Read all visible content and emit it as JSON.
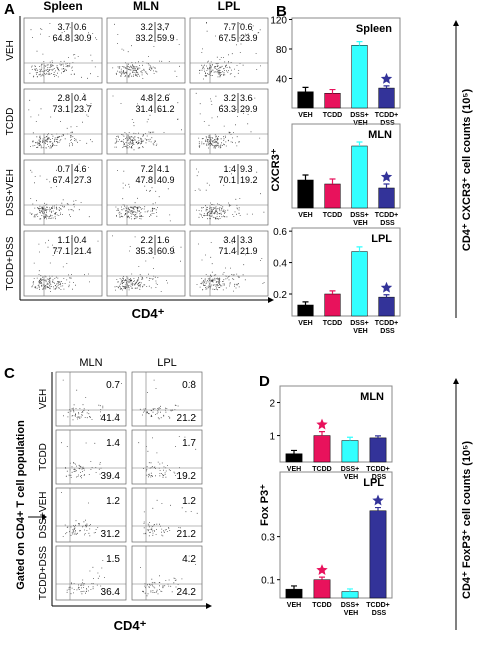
{
  "panel_labels": [
    "A",
    "B",
    "C",
    "D"
  ],
  "flow_a": {
    "columns": [
      "Spleen",
      "MLN",
      "LPL"
    ],
    "rows": [
      "VEH",
      "TCDD",
      "DSS+VEH",
      "TCDD+DSS"
    ],
    "x_label": "CD4⁺",
    "quadrants": [
      [
        [
          3.7,
          0.6,
          64.8,
          30.9
        ],
        [
          2.8,
          0.4,
          73.1,
          23.7
        ],
        [
          0.7,
          4.6,
          67.4,
          27.3
        ],
        [
          1.1,
          0.4,
          77.1,
          21.4
        ]
      ],
      [
        [
          3.2,
          3.7,
          33.2,
          59.9
        ],
        [
          4.8,
          2.6,
          31.4,
          61.2
        ],
        [
          7.2,
          4.1,
          47.8,
          40.9
        ],
        [
          2.2,
          1.6,
          35.3,
          60.9
        ]
      ],
      [
        [
          7.7,
          0.6,
          67.5,
          23.9
        ],
        [
          3.2,
          3.6,
          63.3,
          29.9
        ],
        [
          1.4,
          9.3,
          70.1,
          19.2
        ],
        [
          3.4,
          3.3,
          71.4,
          21.9
        ]
      ]
    ]
  },
  "flow_c": {
    "columns": [
      "MLN",
      "LPL"
    ],
    "rows": [
      "VEH",
      "TCDD",
      "DSS+VEH",
      "TCDD+DSS"
    ],
    "x_label": "CD4⁺",
    "side_label": "Gated on CD4+ T cell population",
    "values": [
      [
        [
          0.7,
          41.4
        ],
        [
          1.4,
          39.4
        ],
        [
          1.2,
          31.2
        ],
        [
          1.5,
          36.4
        ]
      ],
      [
        [
          0.8,
          21.2
        ],
        [
          1.7,
          19.2
        ],
        [
          1.2,
          21.2
        ],
        [
          4.2,
          24.2
        ]
      ]
    ]
  },
  "panel_b": {
    "y_label": "CXCR3⁺",
    "right_label": "CD4⁺ CXCR3⁺ cell counts (10⁵)"
  },
  "panel_d": {
    "y_label": "Fox P3⁺",
    "right_label": "CD4⁺ FoxP3⁺ cell counts (10⁵)"
  },
  "chart_data": [
    {
      "type": "bar",
      "title": "Spleen",
      "categories": [
        "VEH",
        "TCDD",
        "DSS+ VEH",
        "TCDD+ DSS"
      ],
      "values": [
        22,
        20,
        85,
        27
      ],
      "errors": [
        6,
        5,
        5,
        3
      ],
      "colors": [
        "#000000",
        "#e8125c",
        "#33ffff",
        "#333399"
      ],
      "star_colors": [
        null,
        null,
        null,
        "#333399"
      ],
      "ylim": [
        0,
        122
      ],
      "yticks": [
        40,
        80,
        120
      ]
    },
    {
      "type": "bar",
      "title": "MLN",
      "categories": [
        "VEH",
        "TCDD",
        "DSS+ VEH",
        "TCDD+ DSS"
      ],
      "values": [
        14,
        12,
        31,
        10
      ],
      "errors": [
        2.5,
        2.5,
        2,
        2
      ],
      "colors": [
        "#000000",
        "#e8125c",
        "#33ffff",
        "#333399"
      ],
      "star_colors": [
        null,
        null,
        null,
        "#333399"
      ],
      "ylim": [
        0,
        42
      ],
      "yticks": []
    },
    {
      "type": "bar",
      "title": "LPL",
      "categories": [
        "VEH",
        "TCDD",
        "DSS+ VEH",
        "TCDD+ DSS"
      ],
      "values": [
        0.13,
        0.2,
        0.47,
        0.18
      ],
      "errors": [
        0.02,
        0.02,
        0.03,
        0.015
      ],
      "colors": [
        "#000000",
        "#e8125c",
        "#33ffff",
        "#333399"
      ],
      "star_colors": [
        null,
        null,
        null,
        "#333399"
      ],
      "ylim": [
        0.06,
        0.62
      ],
      "yticks": [
        0.2,
        0.4,
        0.6
      ]
    },
    {
      "type": "bar",
      "title": "MLN",
      "categories": [
        "VEH",
        "TCDD",
        "DSS+ VEH",
        "TCDD+ DSS"
      ],
      "values": [
        0.45,
        1.0,
        0.85,
        0.93
      ],
      "errors": [
        0.1,
        0.12,
        0.1,
        0.06
      ],
      "colors": [
        "#000000",
        "#e8125c",
        "#33ffff",
        "#333399"
      ],
      "star_colors": [
        null,
        "#e8125c",
        null,
        null
      ],
      "ylim": [
        0.2,
        2.5
      ],
      "yticks": [
        1,
        2
      ]
    },
    {
      "type": "bar",
      "title": "LPL",
      "categories": [
        "VEH",
        "TCDD",
        "DSS+ VEH",
        "TCDD+ DSS"
      ],
      "values": [
        0.056,
        0.1,
        0.045,
        0.42
      ],
      "errors": [
        0.015,
        0.012,
        0.012,
        0.015
      ],
      "colors": [
        "#000000",
        "#e8125c",
        "#33ffff",
        "#333399"
      ],
      "star_colors": [
        null,
        "#e8125c",
        null,
        "#333399"
      ],
      "ylim": [
        0.015,
        0.6
      ],
      "yticks": [
        0.1,
        0.3
      ]
    }
  ]
}
